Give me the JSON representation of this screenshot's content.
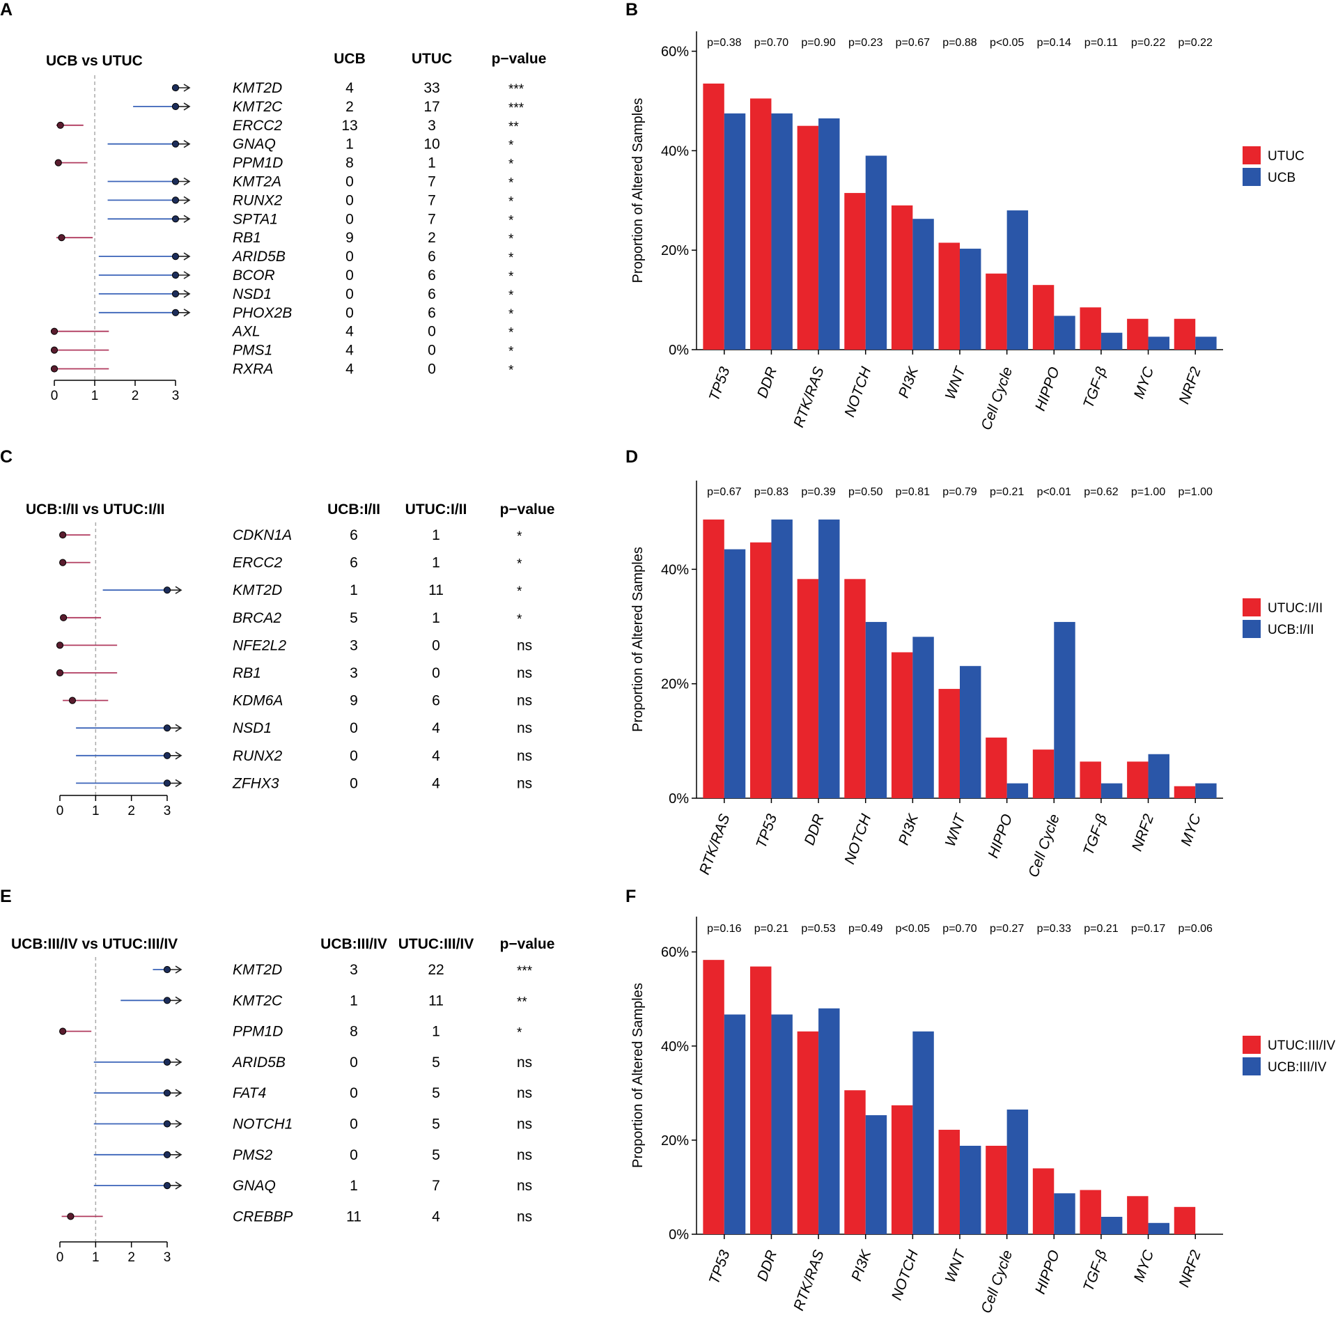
{
  "panel_letters": [
    "A",
    "B",
    "C",
    "D",
    "E",
    "F"
  ],
  "colors": {
    "utuc": "#e8252c",
    "ucb": "#2a56a8",
    "forest_ucb": "#b03a5e",
    "forest_utuc": "#3a63b8",
    "dashed": "#aaaaaa",
    "axis": "#000000"
  },
  "chart_data": [
    {
      "id": "A",
      "type": "forest",
      "title": "UCB vs UTUC",
      "col_headers": [
        "UCB",
        "UTUC",
        "p−value"
      ],
      "xticks": [
        0,
        1,
        2,
        3
      ],
      "xlim": [
        0,
        3
      ],
      "ref_line": 1,
      "rows": [
        {
          "gene": "KMT2D",
          "g1": "4",
          "g2": "33",
          "p": "***",
          "point": 3,
          "lo": 3,
          "hi": 3,
          "dir": "utuc",
          "arrow": true
        },
        {
          "gene": "KMT2C",
          "g1": "2",
          "g2": "17",
          "p": "***",
          "point": 3,
          "lo": 1.95,
          "hi": 3,
          "dir": "utuc",
          "arrow": true
        },
        {
          "gene": "ERCC2",
          "g1": "13",
          "g2": "3",
          "p": "**",
          "point": 0.15,
          "lo": 0.05,
          "hi": 0.72,
          "dir": "ucb",
          "arrow": false
        },
        {
          "gene": "GNAQ",
          "g1": "1",
          "g2": "10",
          "p": "*",
          "point": 3,
          "lo": 1.32,
          "hi": 3,
          "dir": "utuc",
          "arrow": true
        },
        {
          "gene": "PPM1D",
          "g1": "8",
          "g2": "1",
          "p": "*",
          "point": 0.1,
          "lo": 0.01,
          "hi": 0.82,
          "dir": "ucb",
          "arrow": false
        },
        {
          "gene": "KMT2A",
          "g1": "0",
          "g2": "7",
          "p": "*",
          "point": 3,
          "lo": 1.32,
          "hi": 3,
          "dir": "utuc",
          "arrow": true
        },
        {
          "gene": "RUNX2",
          "g1": "0",
          "g2": "7",
          "p": "*",
          "point": 3,
          "lo": 1.32,
          "hi": 3,
          "dir": "utuc",
          "arrow": true
        },
        {
          "gene": "SPTA1",
          "g1": "0",
          "g2": "7",
          "p": "*",
          "point": 3,
          "lo": 1.32,
          "hi": 3,
          "dir": "utuc",
          "arrow": true
        },
        {
          "gene": "RB1",
          "g1": "9",
          "g2": "2",
          "p": "*",
          "point": 0.18,
          "lo": 0.05,
          "hi": 0.95,
          "dir": "ucb",
          "arrow": false
        },
        {
          "gene": "ARID5B",
          "g1": "0",
          "g2": "6",
          "p": "*",
          "point": 3,
          "lo": 1.1,
          "hi": 3,
          "dir": "utuc",
          "arrow": true
        },
        {
          "gene": "BCOR",
          "g1": "0",
          "g2": "6",
          "p": "*",
          "point": 3,
          "lo": 1.1,
          "hi": 3,
          "dir": "utuc",
          "arrow": true
        },
        {
          "gene": "NSD1",
          "g1": "0",
          "g2": "6",
          "p": "*",
          "point": 3,
          "lo": 1.1,
          "hi": 3,
          "dir": "utuc",
          "arrow": true
        },
        {
          "gene": "PHOX2B",
          "g1": "0",
          "g2": "6",
          "p": "*",
          "point": 3,
          "lo": 1.1,
          "hi": 3,
          "dir": "utuc",
          "arrow": true
        },
        {
          "gene": "AXL",
          "g1": "4",
          "g2": "0",
          "p": "*",
          "point": 0,
          "lo": 0,
          "hi": 1.35,
          "dir": "ucb",
          "arrow": false
        },
        {
          "gene": "PMS1",
          "g1": "4",
          "g2": "0",
          "p": "*",
          "point": 0,
          "lo": 0,
          "hi": 1.35,
          "dir": "ucb",
          "arrow": false
        },
        {
          "gene": "RXRA",
          "g1": "4",
          "g2": "0",
          "p": "*",
          "point": 0,
          "lo": 0,
          "hi": 1.35,
          "dir": "ucb",
          "arrow": false
        }
      ]
    },
    {
      "id": "B",
      "type": "bar",
      "ylabel": "Proportion of Altered Samples",
      "ylim": [
        0,
        0.64
      ],
      "yticks": [
        0,
        0.2,
        0.4,
        0.6
      ],
      "ytick_labels": [
        "0%",
        "20%",
        "40%",
        "60%"
      ],
      "categories": [
        "TP53",
        "DDR",
        "RTK/RAS",
        "NOTCH",
        "PI3K",
        "WNT",
        "Cell Cycle",
        "HIPPO",
        "TGF-β",
        "MYC",
        "NRF2"
      ],
      "pvalues": [
        "p=0.38",
        "p=0.70",
        "p=0.90",
        "p=0.23",
        "p=0.67",
        "p=0.88",
        "p<0.05",
        "p=0.14",
        "p=0.11",
        "p=0.22",
        "p=0.22"
      ],
      "series": [
        {
          "name": "UTUC",
          "color": "#e8252c",
          "values": [
            0.535,
            0.505,
            0.45,
            0.315,
            0.29,
            0.215,
            0.153,
            0.13,
            0.085,
            0.062,
            0.062
          ]
        },
        {
          "name": "UCB",
          "color": "#2a56a8",
          "values": [
            0.475,
            0.475,
            0.465,
            0.39,
            0.263,
            0.203,
            0.28,
            0.068,
            0.034,
            0.026,
            0.026
          ]
        }
      ]
    },
    {
      "id": "C",
      "type": "forest",
      "title": "UCB:I/II vs UTUC:I/II",
      "col_headers": [
        "UCB:I/II",
        "UTUC:I/II",
        "p−value"
      ],
      "xticks": [
        0,
        1,
        2,
        3
      ],
      "xlim": [
        0,
        3
      ],
      "ref_line": 1,
      "rows": [
        {
          "gene": "CDKN1A",
          "g1": "6",
          "g2": "1",
          "p": "*",
          "point": 0.08,
          "lo": 0.02,
          "hi": 0.85,
          "dir": "ucb",
          "arrow": false
        },
        {
          "gene": "ERCC2",
          "g1": "6",
          "g2": "1",
          "p": "*",
          "point": 0.08,
          "lo": 0.02,
          "hi": 0.85,
          "dir": "ucb",
          "arrow": false
        },
        {
          "gene": "KMT2D",
          "g1": "1",
          "g2": "11",
          "p": "*",
          "point": 3,
          "lo": 1.2,
          "hi": 3,
          "dir": "utuc",
          "arrow": true
        },
        {
          "gene": "BRCA2",
          "g1": "5",
          "g2": "1",
          "p": "*",
          "point": 0.1,
          "lo": 0.02,
          "hi": 1.15,
          "dir": "ucb",
          "arrow": false
        },
        {
          "gene": "NFE2L2",
          "g1": "3",
          "g2": "0",
          "p": "ns",
          "point": 0,
          "lo": 0,
          "hi": 1.6,
          "dir": "ucb",
          "arrow": false
        },
        {
          "gene": "RB1",
          "g1": "3",
          "g2": "0",
          "p": "ns",
          "point": 0,
          "lo": 0,
          "hi": 1.6,
          "dir": "ucb",
          "arrow": false
        },
        {
          "gene": "KDM6A",
          "g1": "9",
          "g2": "6",
          "p": "ns",
          "point": 0.35,
          "lo": 0.08,
          "hi": 1.35,
          "dir": "ucb",
          "arrow": false
        },
        {
          "gene": "NSD1",
          "g1": "0",
          "g2": "4",
          "p": "ns",
          "point": 3,
          "lo": 0.45,
          "hi": 3,
          "dir": "utuc",
          "arrow": true
        },
        {
          "gene": "RUNX2",
          "g1": "0",
          "g2": "4",
          "p": "ns",
          "point": 3,
          "lo": 0.45,
          "hi": 3,
          "dir": "utuc",
          "arrow": true
        },
        {
          "gene": "ZFHX3",
          "g1": "0",
          "g2": "4",
          "p": "ns",
          "point": 3,
          "lo": 0.45,
          "hi": 3,
          "dir": "utuc",
          "arrow": true
        }
      ]
    },
    {
      "id": "D",
      "type": "bar",
      "ylabel": "Proportion of Altered Samples",
      "ylim": [
        0,
        0.555
      ],
      "yticks": [
        0,
        0.2,
        0.4
      ],
      "ytick_labels": [
        "0%",
        "20%",
        "40%"
      ],
      "categories": [
        "RTK/RAS",
        "TP53",
        "DDR",
        "NOTCH",
        "PI3K",
        "WNT",
        "HIPPO",
        "Cell Cycle",
        "TGF-β",
        "NRF2",
        "MYC"
      ],
      "pvalues": [
        "p=0.67",
        "p=0.83",
        "p=0.39",
        "p=0.50",
        "p=0.81",
        "p=0.79",
        "p=0.21",
        "p<0.01",
        "p=0.62",
        "p=1.00",
        "p=1.00"
      ],
      "series": [
        {
          "name": "UTUC:I/II",
          "color": "#e8252c",
          "values": [
            0.487,
            0.447,
            0.383,
            0.383,
            0.255,
            0.191,
            0.106,
            0.085,
            0.064,
            0.064,
            0.021
          ]
        },
        {
          "name": "UCB:I/II",
          "color": "#2a56a8",
          "values": [
            0.435,
            0.487,
            0.487,
            0.308,
            0.282,
            0.231,
            0.026,
            0.308,
            0.026,
            0.077,
            0.026
          ]
        }
      ]
    },
    {
      "id": "E",
      "type": "forest",
      "title": "UCB:III/IV vs UTUC:III/IV",
      "col_headers": [
        "UCB:III/IV",
        "UTUC:III/IV",
        "p−value"
      ],
      "xticks": [
        0,
        1,
        2,
        3
      ],
      "xlim": [
        0,
        3
      ],
      "ref_line": 1,
      "rows": [
        {
          "gene": "KMT2D",
          "g1": "3",
          "g2": "22",
          "p": "***",
          "point": 3,
          "lo": 2.6,
          "hi": 3,
          "dir": "utuc",
          "arrow": true
        },
        {
          "gene": "KMT2C",
          "g1": "1",
          "g2": "11",
          "p": "**",
          "point": 3,
          "lo": 1.7,
          "hi": 3,
          "dir": "utuc",
          "arrow": true
        },
        {
          "gene": "PPM1D",
          "g1": "8",
          "g2": "1",
          "p": "*",
          "point": 0.08,
          "lo": 0.02,
          "hi": 0.88,
          "dir": "ucb",
          "arrow": false
        },
        {
          "gene": "ARID5B",
          "g1": "0",
          "g2": "5",
          "p": "ns",
          "point": 3,
          "lo": 0.95,
          "hi": 3,
          "dir": "utuc",
          "arrow": true
        },
        {
          "gene": "FAT4",
          "g1": "0",
          "g2": "5",
          "p": "ns",
          "point": 3,
          "lo": 0.95,
          "hi": 3,
          "dir": "utuc",
          "arrow": true
        },
        {
          "gene": "NOTCH1",
          "g1": "0",
          "g2": "5",
          "p": "ns",
          "point": 3,
          "lo": 0.95,
          "hi": 3,
          "dir": "utuc",
          "arrow": true
        },
        {
          "gene": "PMS2",
          "g1": "0",
          "g2": "5",
          "p": "ns",
          "point": 3,
          "lo": 0.95,
          "hi": 3,
          "dir": "utuc",
          "arrow": true
        },
        {
          "gene": "GNAQ",
          "g1": "1",
          "g2": "7",
          "p": "ns",
          "point": 3,
          "lo": 0.95,
          "hi": 3,
          "dir": "utuc",
          "arrow": true
        },
        {
          "gene": "CREBBP",
          "g1": "11",
          "g2": "4",
          "p": "ns",
          "point": 0.3,
          "lo": 0.05,
          "hi": 1.2,
          "dir": "ucb",
          "arrow": false
        }
      ]
    },
    {
      "id": "F",
      "type": "bar",
      "ylabel": "Proportion of Altered Samples",
      "ylim": [
        0,
        0.675
      ],
      "yticks": [
        0,
        0.2,
        0.4,
        0.6
      ],
      "ytick_labels": [
        "0%",
        "20%",
        "40%",
        "60%"
      ],
      "categories": [
        "TP53",
        "DDR",
        "RTK/RAS",
        "PI3K",
        "NOTCH",
        "WNT",
        "Cell Cycle",
        "HIPPO",
        "TGF-β",
        "MYC",
        "NRF2"
      ],
      "pvalues": [
        "p=0.16",
        "p=0.21",
        "p=0.53",
        "p=0.49",
        "p<0.05",
        "p=0.70",
        "p=0.27",
        "p=0.33",
        "p=0.21",
        "p=0.17",
        "p=0.06"
      ],
      "series": [
        {
          "name": "UTUC:III/IV",
          "color": "#e8252c",
          "values": [
            0.583,
            0.569,
            0.431,
            0.306,
            0.274,
            0.222,
            0.188,
            0.14,
            0.094,
            0.081,
            0.058
          ]
        },
        {
          "name": "UCB:III/IV",
          "color": "#2a56a8",
          "values": [
            0.467,
            0.467,
            0.48,
            0.253,
            0.431,
            0.188,
            0.265,
            0.087,
            0.037,
            0.024,
            0.0
          ]
        }
      ]
    }
  ]
}
